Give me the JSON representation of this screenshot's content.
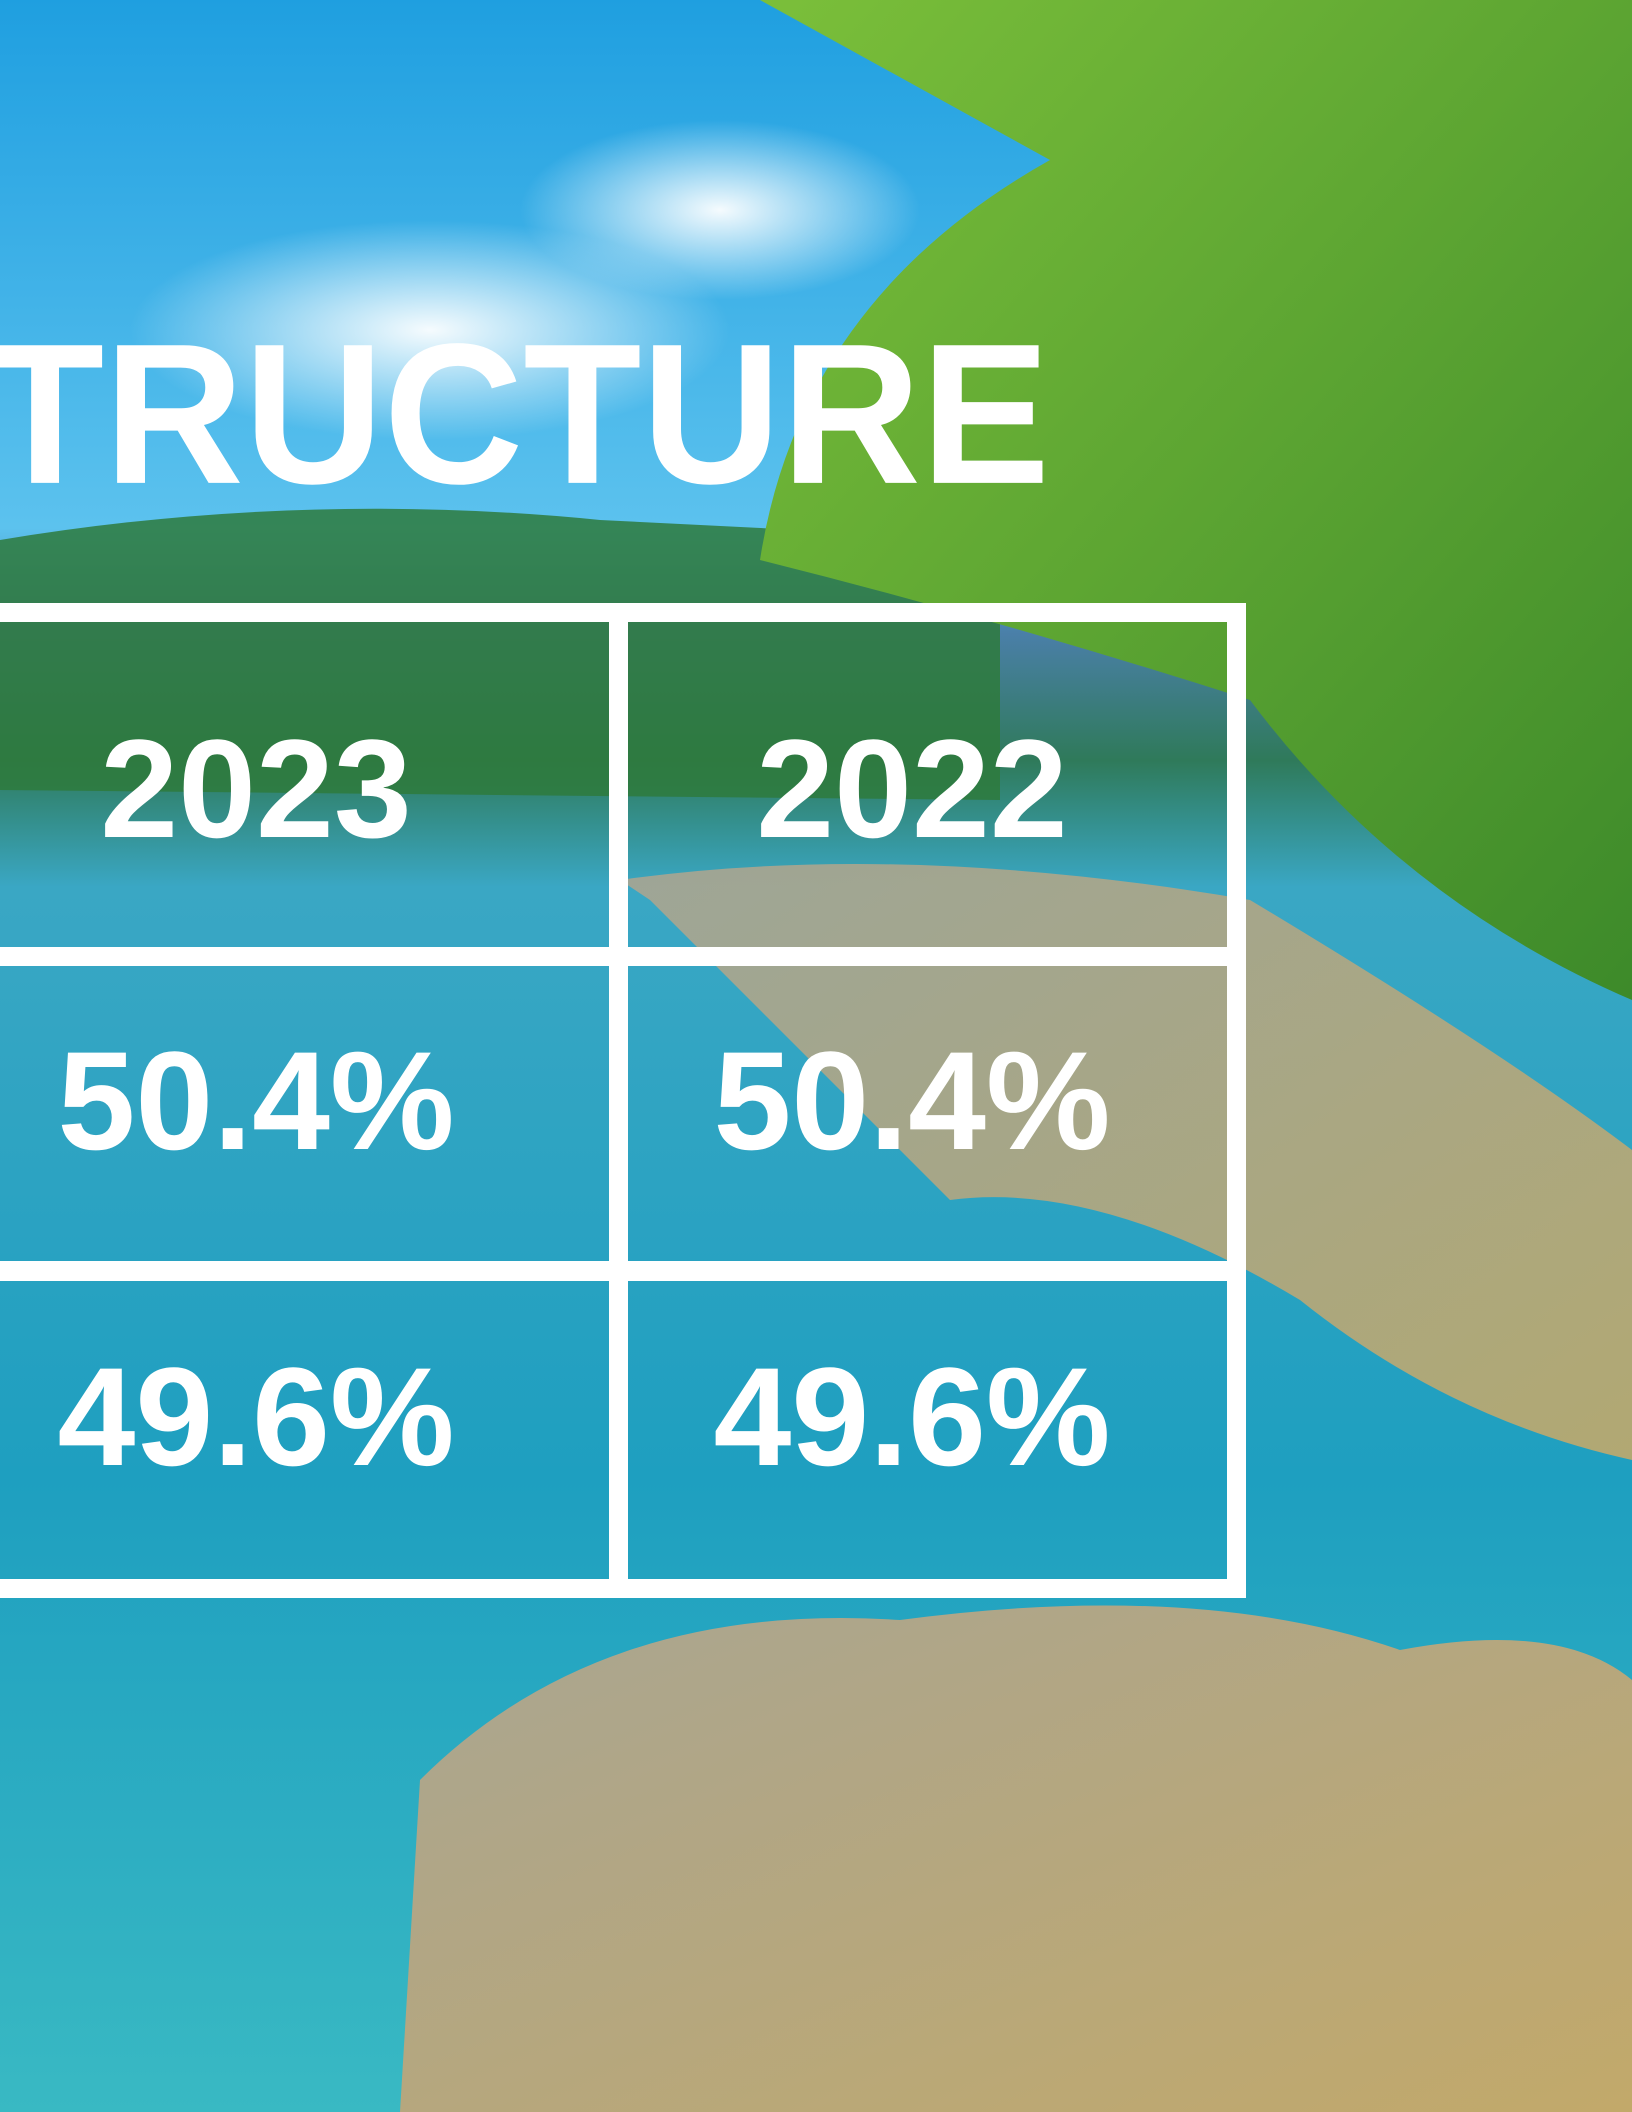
{
  "header": {
    "title": "TRUCTURE"
  },
  "table": {
    "rows": [
      [
        "2023",
        "2022"
      ],
      [
        "50.4%",
        "50.4%"
      ],
      [
        "49.6%",
        "49.6%"
      ]
    ]
  }
}
